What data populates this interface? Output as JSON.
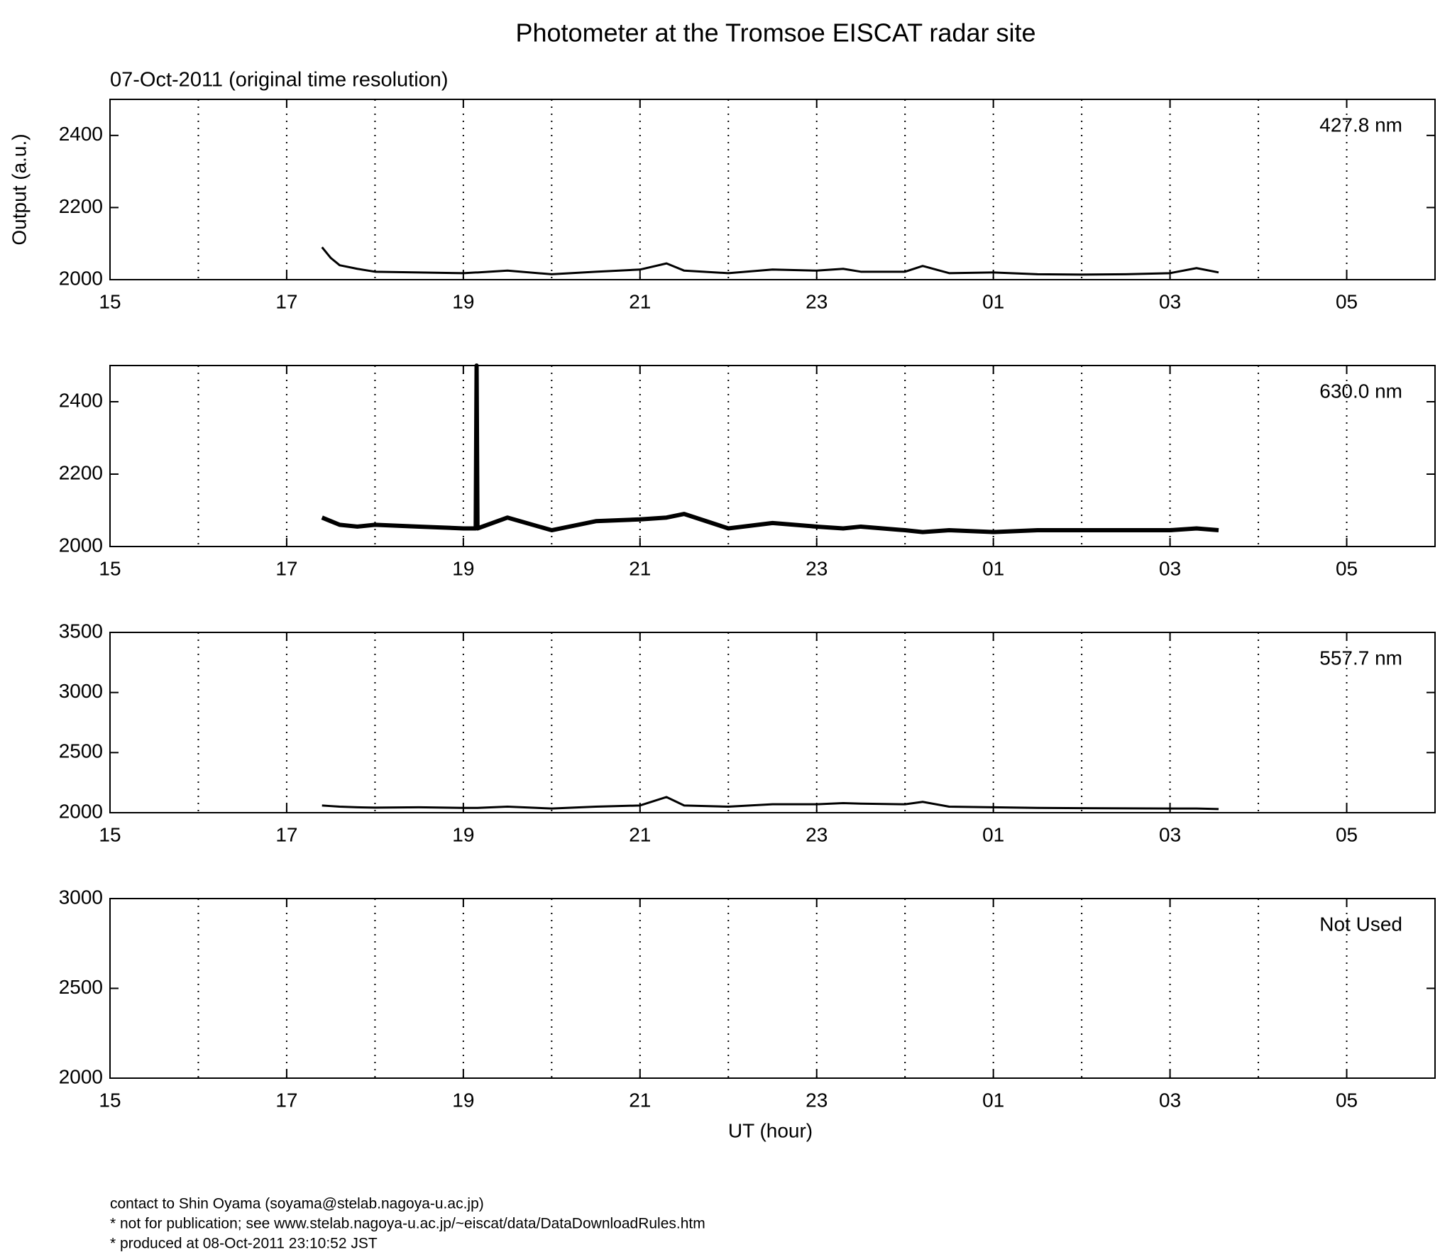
{
  "chart_data": [
    {
      "type": "line",
      "title": "Photometer at the Tromsoe EISCAT radar site",
      "subtitle": "07-Oct-2011 (original time resolution)",
      "ylabel": "Output (a.u.)",
      "annotation": "427.8 nm",
      "color": "#000000",
      "x": [
        17.4,
        17.5,
        17.6,
        17.8,
        18.0,
        18.5,
        19.0,
        19.14,
        19.15,
        19.16,
        19.5,
        20.0,
        20.5,
        21.0,
        21.3,
        21.5,
        22.0,
        22.5,
        23.0,
        23.3,
        23.5,
        24.0,
        24.2,
        24.5,
        25.0,
        25.5,
        26.0,
        26.5,
        27.0,
        27.3,
        27.55
      ],
      "values": [
        2090,
        2060,
        2040,
        2030,
        2022,
        2020,
        2018,
        2020,
        2020,
        2020,
        2025,
        2015,
        2022,
        2028,
        2045,
        2025,
        2018,
        2028,
        2025,
        2030,
        2022,
        2022,
        2038,
        2018,
        2020,
        2015,
        2014,
        2015,
        2018,
        2032,
        2020
      ],
      "xlim": [
        15,
        30
      ],
      "xticks": [
        15,
        17,
        19,
        21,
        23,
        {
          "value": 25,
          "label": "01"
        },
        {
          "value": 27,
          "label": "03"
        },
        {
          "value": 29,
          "label": "05"
        }
      ],
      "xgrid": [
        16,
        17,
        18,
        19,
        20,
        21,
        22,
        23,
        24,
        25,
        26,
        27,
        28,
        29
      ],
      "ylim": [
        2000,
        2500
      ],
      "yticks": [
        2000,
        2200,
        2400
      ]
    },
    {
      "type": "line",
      "annotation": "630.0 nm",
      "color": "#000000",
      "x": [
        17.4,
        17.5,
        17.6,
        17.8,
        18.0,
        18.5,
        19.0,
        19.14,
        19.15,
        19.16,
        19.5,
        20.0,
        20.5,
        21.0,
        21.3,
        21.5,
        22.0,
        22.5,
        23.0,
        23.3,
        23.5,
        24.0,
        24.2,
        24.5,
        25.0,
        25.5,
        26.0,
        26.5,
        27.0,
        27.3,
        27.55
      ],
      "values": [
        2080,
        2070,
        2060,
        2055,
        2060,
        2055,
        2050,
        2050,
        2500,
        2050,
        2080,
        2045,
        2070,
        2075,
        2080,
        2090,
        2050,
        2065,
        2055,
        2050,
        2055,
        2045,
        2040,
        2045,
        2040,
        2045,
        2045,
        2045,
        2045,
        2050,
        2045
      ],
      "xlim": [
        15,
        30
      ],
      "xticks": [
        15,
        17,
        19,
        21,
        23,
        {
          "value": 25,
          "label": "01"
        },
        {
          "value": 27,
          "label": "03"
        },
        {
          "value": 29,
          "label": "05"
        }
      ],
      "xgrid": [
        16,
        17,
        18,
        19,
        20,
        21,
        22,
        23,
        24,
        25,
        26,
        27,
        28,
        29
      ],
      "ylim": [
        2000,
        2500
      ],
      "yticks": [
        2000,
        2200,
        2400
      ]
    },
    {
      "type": "line",
      "annotation": "557.7 nm",
      "color": "#000000",
      "x": [
        17.4,
        17.5,
        17.6,
        17.8,
        18.0,
        18.5,
        19.0,
        19.14,
        19.15,
        19.16,
        19.5,
        20.0,
        20.5,
        21.0,
        21.3,
        21.5,
        22.0,
        22.5,
        23.0,
        23.3,
        23.5,
        24.0,
        24.2,
        24.5,
        25.0,
        25.5,
        26.0,
        26.5,
        27.0,
        27.3,
        27.55
      ],
      "values": [
        2060,
        2055,
        2050,
        2045,
        2042,
        2045,
        2040,
        2040,
        2040,
        2040,
        2050,
        2035,
        2050,
        2060,
        2130,
        2060,
        2050,
        2070,
        2070,
        2080,
        2075,
        2070,
        2090,
        2050,
        2045,
        2040,
        2038,
        2036,
        2035,
        2035,
        2030
      ],
      "xlim": [
        15,
        30
      ],
      "xticks": [
        15,
        17,
        19,
        21,
        23,
        {
          "value": 25,
          "label": "01"
        },
        {
          "value": 27,
          "label": "03"
        },
        {
          "value": 29,
          "label": "05"
        }
      ],
      "xgrid": [
        16,
        17,
        18,
        19,
        20,
        21,
        22,
        23,
        24,
        25,
        26,
        27,
        28,
        29
      ],
      "ylim": [
        2000,
        3500
      ],
      "yticks": [
        2000,
        2500,
        3000,
        3500
      ]
    },
    {
      "type": "line",
      "annotation": "Not Used",
      "xlabel": "UT (hour)",
      "xlim": [
        15,
        30
      ],
      "xticks": [
        15,
        17,
        19,
        21,
        23,
        {
          "value": 25,
          "label": "01"
        },
        {
          "value": 27,
          "label": "03"
        },
        {
          "value": 29,
          "label": "05"
        }
      ],
      "xgrid": [
        16,
        17,
        18,
        19,
        20,
        21,
        22,
        23,
        24,
        25,
        26,
        27,
        28,
        29
      ],
      "ylim": [
        2000,
        3000
      ],
      "yticks": [
        2000,
        2500,
        3000
      ]
    }
  ],
  "footer": [
    "contact to Shin Oyama (soyama@stelab.nagoya-u.ac.jp)",
    "* not for publication; see www.stelab.nagoya-u.ac.jp/~eiscat/data/DataDownloadRules.htm",
    "* produced at 08-Oct-2011 23:10:52 JST"
  ]
}
